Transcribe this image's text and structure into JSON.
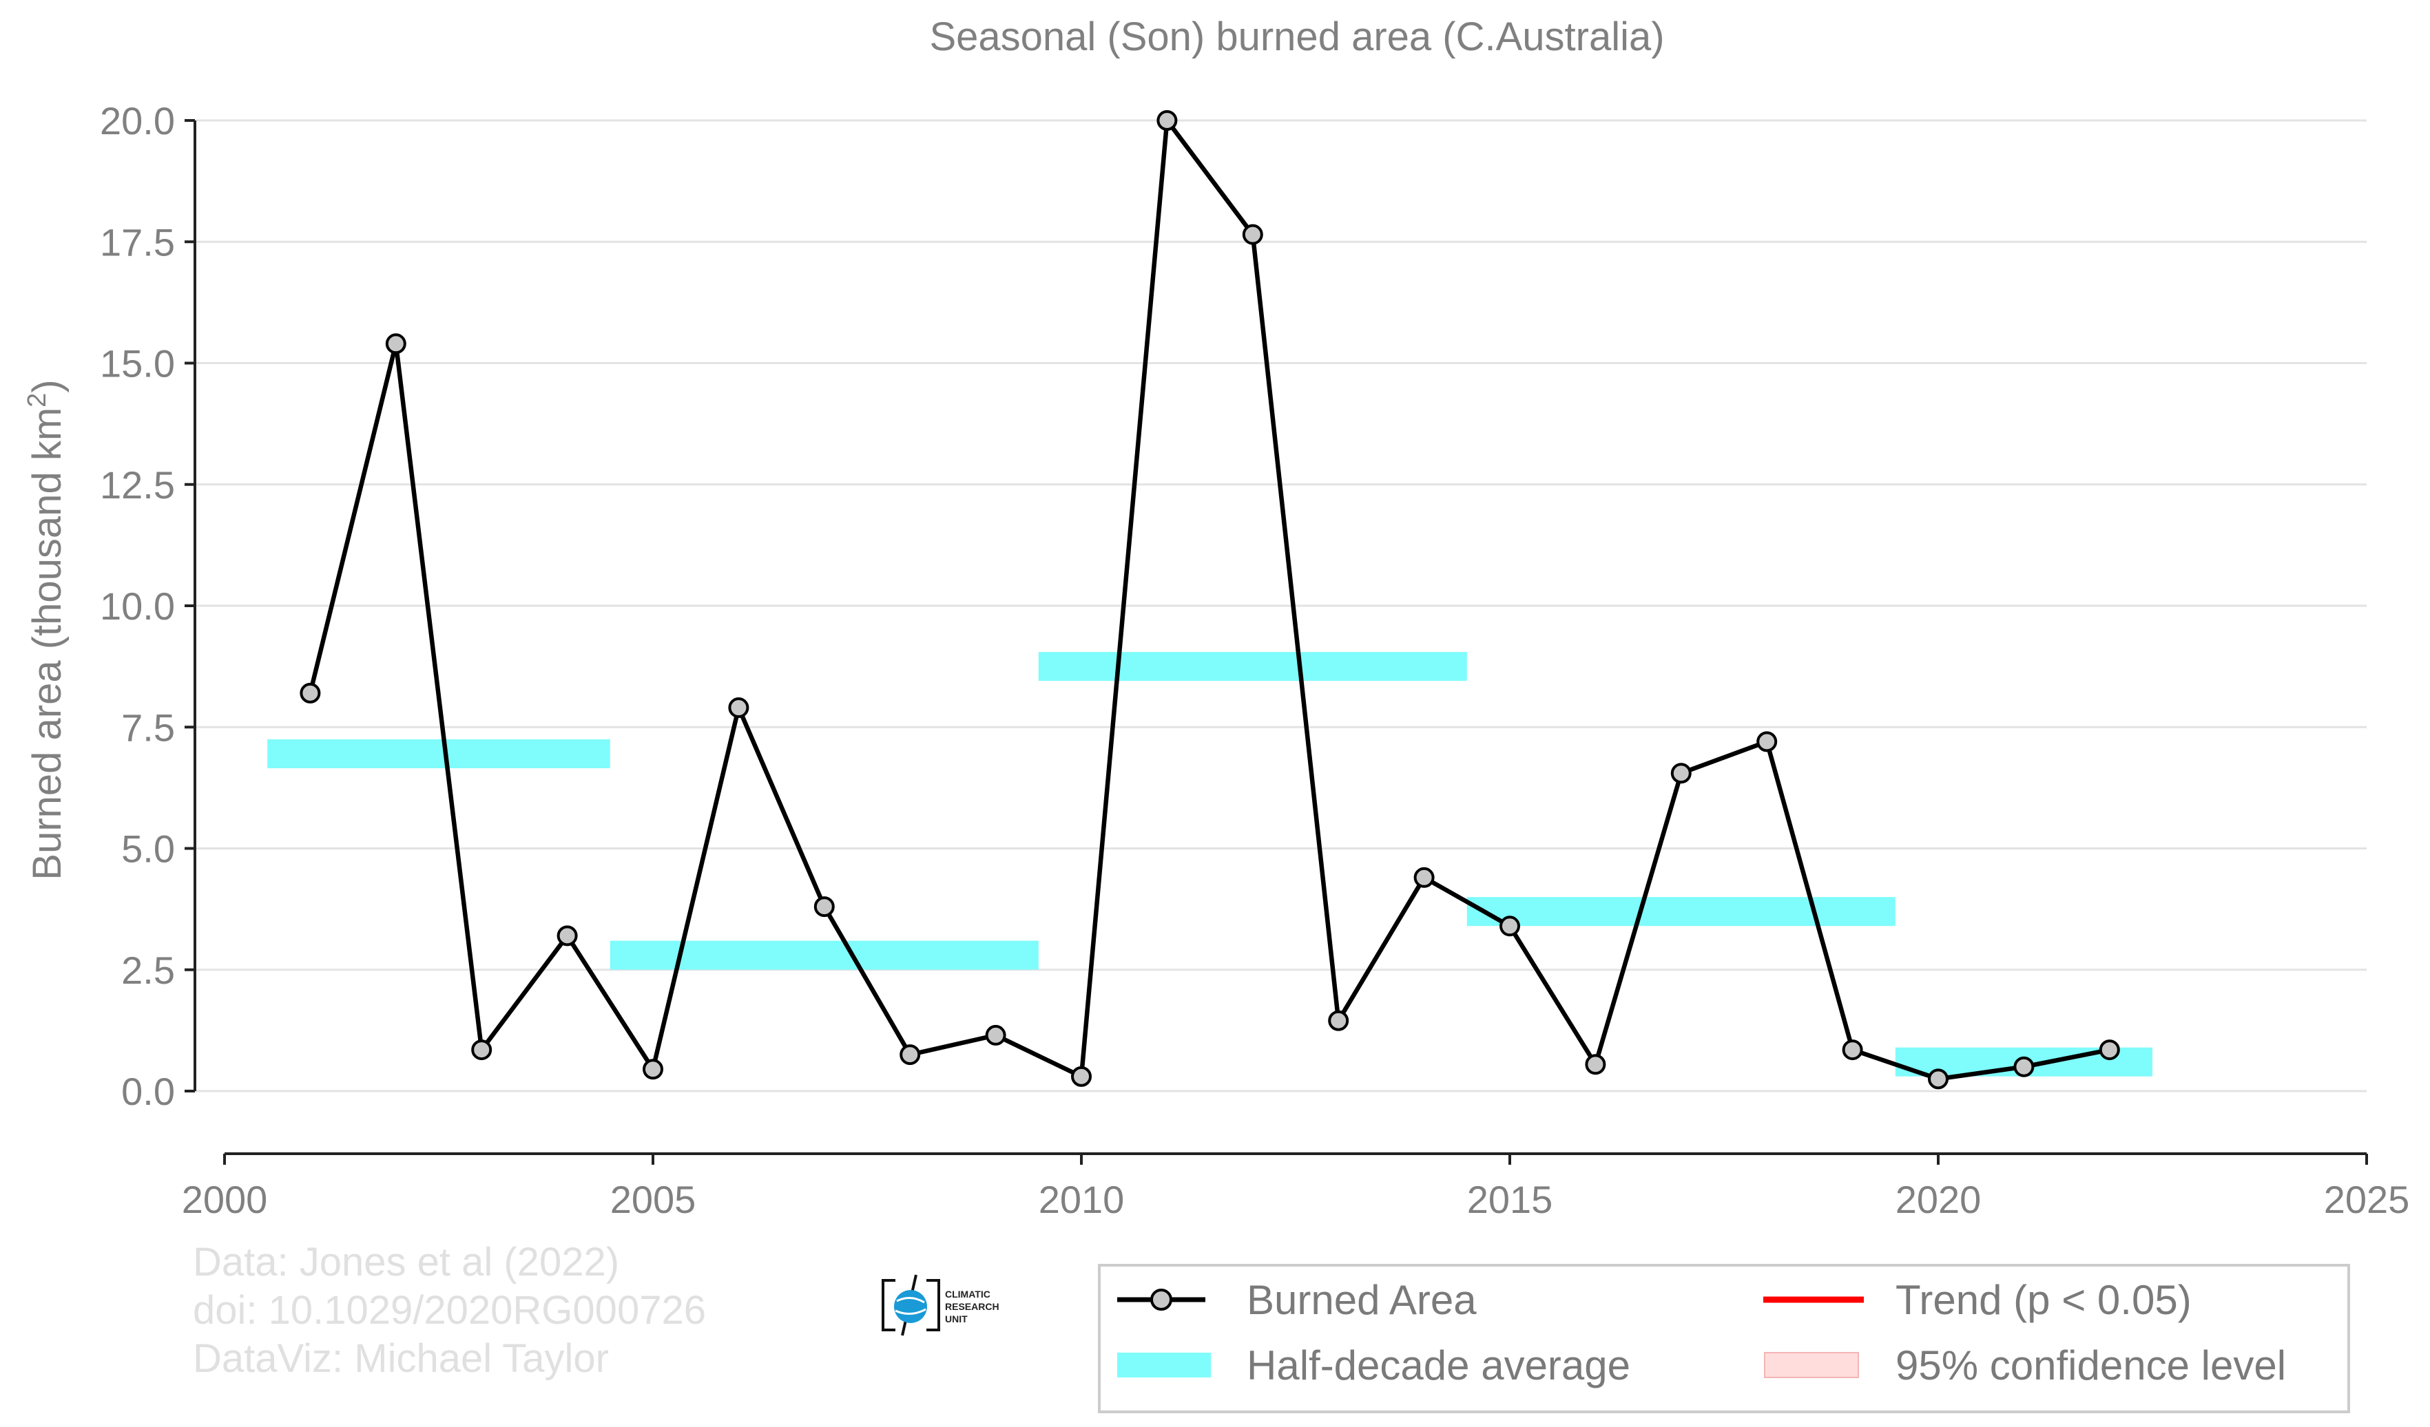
{
  "chart_data": {
    "type": "line",
    "title": "Seasonal (Son) burned area (C.Australia)",
    "ylabel": "Burned area (thousand km",
    "ylabel_sup": "2",
    "ylabel_close": ")",
    "xlim": [
      2000,
      2025
    ],
    "ylim": [
      -0.65,
      20.0
    ],
    "xticks": [
      2000,
      2005,
      2010,
      2015,
      2020,
      2025
    ],
    "yticks": [
      0,
      2.5,
      5,
      7.5,
      10,
      12.5,
      15,
      17.5,
      20
    ],
    "ytick_labels": [
      "0.0",
      "2.5",
      "5.0",
      "7.5",
      "10.0",
      "12.5",
      "15.0",
      "17.5",
      "20.0"
    ],
    "series": [
      {
        "name": "Burned Area",
        "color": "#000000",
        "marker_fill": "#c8c8c8",
        "x": [
          2001,
          2002,
          2003,
          2004,
          2005,
          2006,
          2007,
          2008,
          2009,
          2010,
          2011,
          2012,
          2013,
          2014,
          2015,
          2016,
          2017,
          2018,
          2019,
          2020,
          2021,
          2022
        ],
        "y": [
          8.2,
          15.4,
          0.85,
          3.2,
          0.45,
          7.9,
          3.8,
          0.75,
          1.15,
          0.3,
          20.0,
          17.65,
          1.45,
          4.4,
          3.4,
          0.55,
          6.55,
          7.2,
          0.85,
          0.25,
          0.5,
          0.85
        ]
      }
    ],
    "half_decade": {
      "name": "Half-decade average",
      "color": "#7ffcfc",
      "segments": [
        {
          "x0": 2000.5,
          "x1": 2004.5,
          "y": 6.95
        },
        {
          "x0": 2004.5,
          "x1": 2009.5,
          "y": 2.8
        },
        {
          "x0": 2009.5,
          "x1": 2014.5,
          "y": 8.75
        },
        {
          "x0": 2014.5,
          "x1": 2019.5,
          "y": 3.7
        },
        {
          "x0": 2019.5,
          "x1": 2022.5,
          "y": 0.6
        }
      ]
    },
    "legend": {
      "placement": "bottom-right",
      "items": [
        {
          "label": "Burned Area",
          "kind": "line-marker",
          "color": "#000000"
        },
        {
          "label": "Trend (p < 0.05)",
          "kind": "line",
          "color": "#ff0000"
        },
        {
          "label": "Half-decade average",
          "kind": "patch",
          "color": "#7ffcfc"
        },
        {
          "label": "95% confidence level",
          "kind": "patch",
          "color": "#ffdddd"
        }
      ]
    },
    "grid": "horizontal"
  },
  "credits": {
    "line1": "Data: Jones et al (2022)",
    "line2": "doi: 10.1029/2020RG000726",
    "line3": "DataViz: Michael Taylor"
  },
  "logo": {
    "line1": "CLIMATIC",
    "line2": "RESEARCH",
    "line3": "UNIT"
  }
}
